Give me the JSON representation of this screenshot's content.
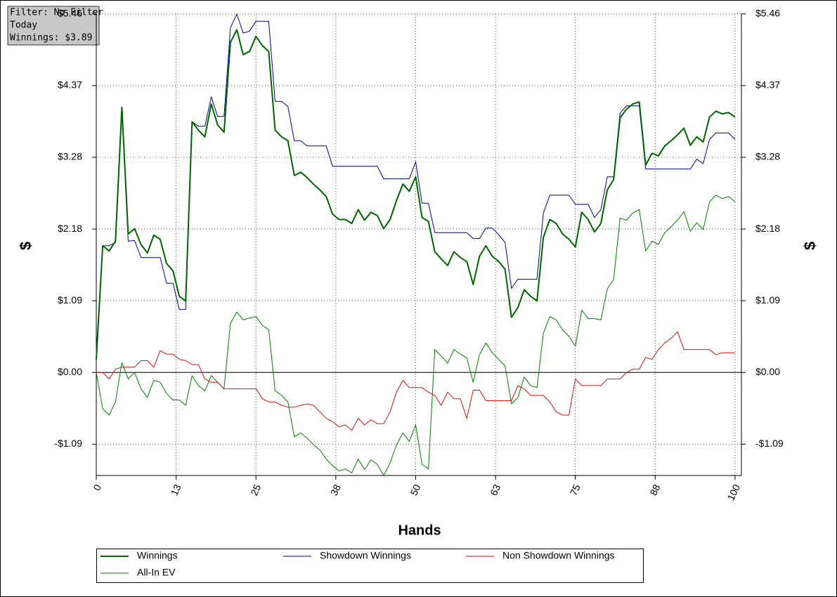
{
  "filter_box": {
    "lines": [
      "Filter: No Filter",
      "Today",
      "Winnings: $3.89"
    ]
  },
  "chart_data": {
    "type": "line",
    "x_label": "Hands",
    "y_label": "$",
    "y2_label": "$",
    "xlim": [
      0,
      101
    ],
    "ylim": [
      -1.57,
      5.46
    ],
    "xticks": [
      0,
      {
        "value": 12.5,
        "label": "13"
      },
      25,
      {
        "value": 37.5,
        "label": "38"
      },
      50,
      {
        "value": 62.5,
        "label": "63"
      },
      75,
      {
        "value": 87.5,
        "label": "88"
      },
      100
    ],
    "yticks": [
      {
        "value": -1.0925,
        "label": "-$1.09"
      },
      {
        "value": 0,
        "label": "$0.00"
      },
      {
        "value": 1.0925,
        "label": "$1.09"
      },
      {
        "value": 2.185,
        "label": "$2.18"
      },
      {
        "value": 3.2775,
        "label": "$3.28"
      },
      {
        "value": 4.37,
        "label": "$4.37"
      },
      {
        "value": 5.4625,
        "label": "$5.46"
      }
    ],
    "grid": true,
    "x": [
      0,
      1,
      2,
      3,
      4,
      5,
      6,
      7,
      8,
      9,
      10,
      11,
      12,
      13,
      14,
      15,
      16,
      17,
      18,
      19,
      20,
      21,
      22,
      23,
      24,
      25,
      26,
      27,
      28,
      29,
      30,
      31,
      32,
      33,
      34,
      35,
      36,
      37,
      38,
      39,
      40,
      41,
      42,
      43,
      44,
      45,
      46,
      47,
      48,
      49,
      50,
      51,
      52,
      53,
      54,
      55,
      56,
      57,
      58,
      59,
      60,
      61,
      62,
      63,
      64,
      65,
      66,
      67,
      68,
      69,
      70,
      71,
      72,
      73,
      74,
      75,
      76,
      77,
      78,
      79,
      80,
      81,
      82,
      83,
      84,
      85,
      86,
      87,
      88,
      89,
      90,
      91,
      92,
      93,
      94,
      95,
      96,
      97,
      98,
      99,
      100
    ],
    "series": [
      {
        "name": "Winnings",
        "color": "#006400",
        "width": 2,
        "values": [
          0.2,
          1.93,
          1.85,
          2.0,
          4.04,
          2.11,
          2.19,
          1.95,
          1.82,
          2.09,
          2.03,
          1.66,
          1.55,
          1.16,
          1.09,
          3.82,
          3.69,
          3.59,
          4.09,
          3.77,
          3.66,
          5.03,
          5.22,
          4.84,
          4.89,
          5.12,
          4.98,
          4.89,
          3.69,
          3.59,
          3.53,
          3.0,
          3.05,
          2.97,
          2.87,
          2.78,
          2.68,
          2.41,
          2.33,
          2.33,
          2.27,
          2.48,
          2.32,
          2.44,
          2.39,
          2.19,
          2.33,
          2.62,
          2.87,
          2.76,
          2.98,
          2.36,
          2.3,
          1.84,
          1.73,
          1.63,
          1.84,
          1.75,
          1.69,
          1.34,
          1.77,
          1.93,
          1.77,
          1.69,
          1.57,
          0.84,
          0.99,
          1.26,
          1.16,
          1.09,
          2.06,
          2.33,
          2.27,
          2.11,
          2.03,
          1.91,
          2.44,
          2.33,
          2.14,
          2.27,
          2.78,
          2.94,
          3.88,
          4.01,
          4.09,
          4.12,
          3.16,
          3.34,
          3.3,
          3.45,
          3.53,
          3.62,
          3.72,
          3.46,
          3.59,
          3.51,
          3.89,
          3.98,
          3.94,
          3.96,
          3.89
        ]
      },
      {
        "name": "Showdown Winnings",
        "color": "#00008b",
        "width": 1,
        "values": [
          0.3,
          1.93,
          1.93,
          1.98,
          4.04,
          2.0,
          2.01,
          1.75,
          1.75,
          1.75,
          1.75,
          1.36,
          1.36,
          0.96,
          0.96,
          3.82,
          3.75,
          3.75,
          4.2,
          3.9,
          3.9,
          5.25,
          5.46,
          5.17,
          5.2,
          5.35,
          5.35,
          5.35,
          4.13,
          4.13,
          4.05,
          3.53,
          3.53,
          3.45,
          3.45,
          3.45,
          3.45,
          3.14,
          3.14,
          3.14,
          3.14,
          3.14,
          3.14,
          3.14,
          3.14,
          2.95,
          2.95,
          2.95,
          2.95,
          2.95,
          3.21,
          2.58,
          2.58,
          2.13,
          2.13,
          2.13,
          2.13,
          2.13,
          2.13,
          2.04,
          2.04,
          2.2,
          2.2,
          2.1,
          1.98,
          1.28,
          1.42,
          1.42,
          1.42,
          1.42,
          2.43,
          2.7,
          2.7,
          2.7,
          2.7,
          2.56,
          2.56,
          2.56,
          2.36,
          2.48,
          2.98,
          2.98,
          3.95,
          4.06,
          4.06,
          4.06,
          3.1,
          3.1,
          3.1,
          3.1,
          3.1,
          3.1,
          3.1,
          3.1,
          3.25,
          3.18,
          3.55,
          3.65,
          3.65,
          3.65,
          3.55
        ]
      },
      {
        "name": "Non Showdown Winnings",
        "color": "#dd1111",
        "width": 1,
        "values": [
          0,
          0,
          -0.1,
          0.05,
          0.08,
          0.08,
          0.08,
          0.18,
          0.18,
          0.08,
          0.33,
          0.28,
          0.28,
          0.2,
          0.18,
          0.12,
          0.12,
          -0.1,
          -0.15,
          -0.15,
          -0.25,
          -0.25,
          -0.25,
          -0.25,
          -0.25,
          -0.25,
          -0.4,
          -0.45,
          -0.45,
          -0.5,
          -0.53,
          -0.53,
          -0.5,
          -0.48,
          -0.5,
          -0.6,
          -0.7,
          -0.75,
          -0.83,
          -0.8,
          -0.88,
          -0.7,
          -0.8,
          -0.72,
          -0.78,
          -0.78,
          -0.6,
          -0.3,
          -0.12,
          -0.23,
          -0.23,
          -0.23,
          -0.3,
          -0.35,
          -0.5,
          -0.3,
          -0.4,
          -0.4,
          -0.7,
          -0.27,
          -0.27,
          -0.43,
          -0.43,
          -0.43,
          -0.43,
          -0.43,
          -0.2,
          -0.25,
          -0.35,
          -0.35,
          -0.35,
          -0.45,
          -0.6,
          -0.65,
          -0.65,
          -0.1,
          -0.2,
          -0.2,
          -0.2,
          -0.2,
          -0.1,
          -0.1,
          -0.1,
          0,
          0.05,
          0.05,
          0.23,
          0.2,
          0.35,
          0.45,
          0.52,
          0.62,
          0.35,
          0.35,
          0.35,
          0.35,
          0.35,
          0.27,
          0.3,
          0.3,
          0.3
        ]
      },
      {
        "name": "All-In EV",
        "color": "#008000",
        "width": 1,
        "values": [
          0,
          -0.55,
          -0.65,
          -0.45,
          0.15,
          -0.1,
          0,
          -0.25,
          -0.38,
          -0.12,
          -0.15,
          -0.32,
          -0.42,
          -0.42,
          -0.5,
          -0.05,
          -0.2,
          -0.28,
          -0.05,
          -0.15,
          -0.25,
          0.75,
          0.92,
          0.8,
          0.83,
          0.85,
          0.72,
          0.65,
          -0.28,
          -0.35,
          -0.45,
          -0.98,
          -0.92,
          -1.0,
          -1.1,
          -1.18,
          -1.32,
          -1.42,
          -1.5,
          -1.47,
          -1.53,
          -1.32,
          -1.48,
          -1.33,
          -1.4,
          -1.57,
          -1.38,
          -1.1,
          -0.92,
          -1.05,
          -0.8,
          -1.4,
          -1.47,
          0.35,
          0.25,
          0.14,
          0.35,
          0.28,
          0.22,
          -0.15,
          0.27,
          0.45,
          0.3,
          0.2,
          0.1,
          -0.48,
          -0.38,
          -0.07,
          -0.2,
          -0.23,
          0.6,
          0.85,
          0.8,
          0.65,
          0.55,
          0.4,
          0.95,
          0.82,
          0.82,
          0.8,
          1.27,
          1.42,
          2.35,
          2.32,
          2.43,
          2.48,
          1.85,
          2.0,
          1.95,
          2.13,
          2.22,
          2.32,
          2.45,
          2.15,
          2.28,
          2.18,
          2.6,
          2.7,
          2.65,
          2.68,
          2.6
        ]
      }
    ]
  }
}
